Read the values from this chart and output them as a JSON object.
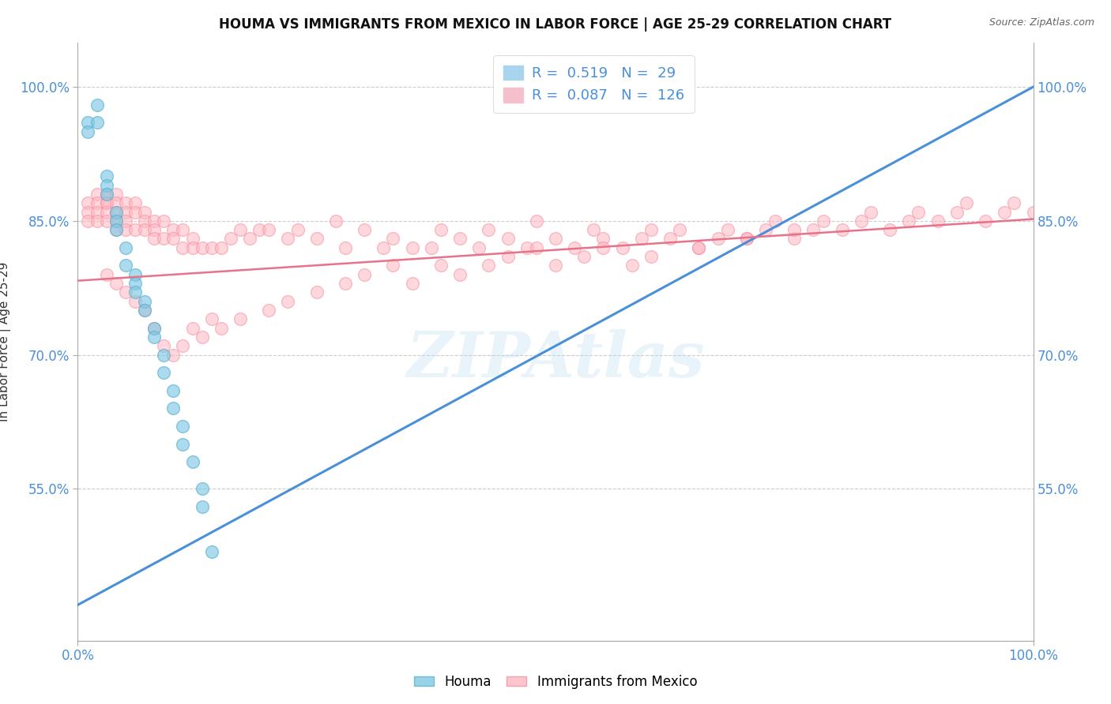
{
  "title": "HOUMA VS IMMIGRANTS FROM MEXICO IN LABOR FORCE | AGE 25-29 CORRELATION CHART",
  "source_text": "Source: ZipAtlas.com",
  "ylabel": "In Labor Force | Age 25-29",
  "xlim": [
    0.0,
    1.0
  ],
  "ylim": [
    0.38,
    1.05
  ],
  "x_tick_labels": [
    "0.0%",
    "100.0%"
  ],
  "y_tick_values": [
    0.55,
    0.7,
    0.85,
    1.0
  ],
  "y_tick_labels": [
    "55.0%",
    "70.0%",
    "85.0%",
    "100.0%"
  ],
  "houma_R": 0.519,
  "houma_N": 29,
  "mexico_R": 0.087,
  "mexico_N": 126,
  "houma_color": "#7ec8e3",
  "houma_edge_color": "#5ab0d0",
  "mexico_color": "#ffb6c1",
  "mexico_edge_color": "#f090a0",
  "houma_line_color": "#4a90d9",
  "mexico_line_color": "#e8728a",
  "houma_line_start_y": 0.42,
  "houma_line_end_y": 1.0,
  "mexico_line_start_y": 0.783,
  "mexico_line_end_y": 0.852,
  "watermark_text": "ZipAtlas",
  "background_color": "#ffffff",
  "grid_color": "#cccccc",
  "houma_scatter_x": [
    0.01,
    0.01,
    0.02,
    0.02,
    0.03,
    0.03,
    0.03,
    0.04,
    0.04,
    0.04,
    0.05,
    0.05,
    0.06,
    0.06,
    0.06,
    0.07,
    0.07,
    0.08,
    0.08,
    0.09,
    0.09,
    0.1,
    0.1,
    0.11,
    0.11,
    0.12,
    0.13,
    0.13,
    0.14
  ],
  "houma_scatter_y": [
    0.96,
    0.95,
    0.98,
    0.96,
    0.9,
    0.89,
    0.88,
    0.86,
    0.85,
    0.84,
    0.82,
    0.8,
    0.79,
    0.78,
    0.77,
    0.76,
    0.75,
    0.73,
    0.72,
    0.7,
    0.68,
    0.66,
    0.64,
    0.62,
    0.6,
    0.58,
    0.55,
    0.53,
    0.48
  ],
  "mexico_scatter_x": [
    0.01,
    0.01,
    0.01,
    0.02,
    0.02,
    0.02,
    0.02,
    0.03,
    0.03,
    0.03,
    0.03,
    0.03,
    0.04,
    0.04,
    0.04,
    0.04,
    0.04,
    0.05,
    0.05,
    0.05,
    0.05,
    0.06,
    0.06,
    0.06,
    0.07,
    0.07,
    0.07,
    0.08,
    0.08,
    0.08,
    0.09,
    0.09,
    0.1,
    0.1,
    0.11,
    0.11,
    0.12,
    0.12,
    0.13,
    0.14,
    0.15,
    0.16,
    0.17,
    0.18,
    0.19,
    0.2,
    0.22,
    0.23,
    0.25,
    0.27,
    0.28,
    0.3,
    0.32,
    0.33,
    0.35,
    0.37,
    0.38,
    0.4,
    0.42,
    0.43,
    0.45,
    0.47,
    0.48,
    0.5,
    0.52,
    0.54,
    0.55,
    0.57,
    0.59,
    0.6,
    0.62,
    0.63,
    0.65,
    0.67,
    0.68,
    0.7,
    0.72,
    0.73,
    0.75,
    0.77,
    0.78,
    0.8,
    0.82,
    0.83,
    0.85,
    0.87,
    0.88,
    0.9,
    0.92,
    0.93,
    0.95,
    0.97,
    0.98,
    1.0,
    0.03,
    0.04,
    0.05,
    0.06,
    0.07,
    0.08,
    0.09,
    0.1,
    0.11,
    0.12,
    0.13,
    0.14,
    0.15,
    0.17,
    0.2,
    0.22,
    0.25,
    0.28,
    0.3,
    0.33,
    0.35,
    0.38,
    0.4,
    0.43,
    0.45,
    0.48,
    0.5,
    0.53,
    0.55,
    0.58,
    0.6,
    0.65,
    0.7,
    0.75
  ],
  "mexico_scatter_y": [
    0.87,
    0.86,
    0.85,
    0.88,
    0.87,
    0.86,
    0.85,
    0.88,
    0.87,
    0.87,
    0.86,
    0.85,
    0.88,
    0.87,
    0.86,
    0.85,
    0.84,
    0.87,
    0.86,
    0.85,
    0.84,
    0.87,
    0.86,
    0.84,
    0.86,
    0.85,
    0.84,
    0.85,
    0.84,
    0.83,
    0.85,
    0.83,
    0.84,
    0.83,
    0.84,
    0.82,
    0.83,
    0.82,
    0.82,
    0.82,
    0.82,
    0.83,
    0.84,
    0.83,
    0.84,
    0.84,
    0.83,
    0.84,
    0.83,
    0.85,
    0.82,
    0.84,
    0.82,
    0.83,
    0.82,
    0.82,
    0.84,
    0.83,
    0.82,
    0.84,
    0.83,
    0.82,
    0.85,
    0.83,
    0.82,
    0.84,
    0.83,
    0.82,
    0.83,
    0.84,
    0.83,
    0.84,
    0.82,
    0.83,
    0.84,
    0.83,
    0.84,
    0.85,
    0.83,
    0.84,
    0.85,
    0.84,
    0.85,
    0.86,
    0.84,
    0.85,
    0.86,
    0.85,
    0.86,
    0.87,
    0.85,
    0.86,
    0.87,
    0.86,
    0.79,
    0.78,
    0.77,
    0.76,
    0.75,
    0.73,
    0.71,
    0.7,
    0.71,
    0.73,
    0.72,
    0.74,
    0.73,
    0.74,
    0.75,
    0.76,
    0.77,
    0.78,
    0.79,
    0.8,
    0.78,
    0.8,
    0.79,
    0.8,
    0.81,
    0.82,
    0.8,
    0.81,
    0.82,
    0.8,
    0.81,
    0.82,
    0.83,
    0.84
  ]
}
